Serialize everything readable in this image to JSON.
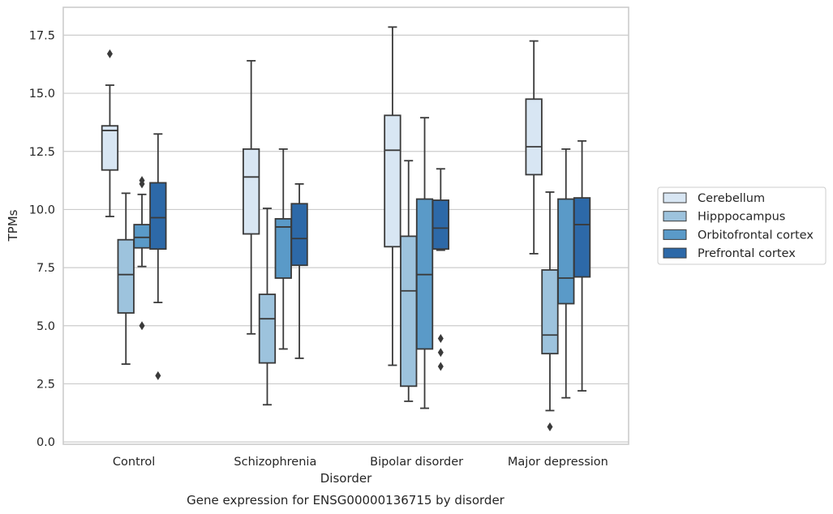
{
  "chart_data": {
    "type": "boxplot",
    "caption": "Gene expression for ENSG00000136715 by disorder",
    "xlabel": "Disorder",
    "ylabel": "TPMs",
    "ylim": [
      -0.1,
      18.7
    ],
    "yticks": [
      0.0,
      2.5,
      5.0,
      7.5,
      10.0,
      12.5,
      15.0,
      17.5
    ],
    "ytick_labels": [
      "0.0",
      "2.5",
      "5.0",
      "7.5",
      "10.0",
      "12.5",
      "15.0",
      "17.5"
    ],
    "categories": [
      "Control",
      "Schizophrenia",
      "Bipolar disorder",
      "Major depression"
    ],
    "grid": "horizontal",
    "legend_position": "right",
    "series": [
      {
        "name": "Cerebellum",
        "color": "#d8e6f3",
        "boxes": [
          {
            "whisker_low": 9.7,
            "q1": 11.7,
            "median": 13.4,
            "q3": 13.6,
            "whisker_high": 15.35,
            "outliers": [
              16.7
            ]
          },
          {
            "whisker_low": 4.65,
            "q1": 8.95,
            "median": 11.4,
            "q3": 12.6,
            "whisker_high": 16.4,
            "outliers": []
          },
          {
            "whisker_low": 3.3,
            "q1": 8.4,
            "median": 12.55,
            "q3": 14.05,
            "whisker_high": 17.85,
            "outliers": []
          },
          {
            "whisker_low": 8.1,
            "q1": 11.5,
            "median": 12.7,
            "q3": 14.75,
            "whisker_high": 17.25,
            "outliers": []
          }
        ]
      },
      {
        "name": "Hipppocampus",
        "color": "#9dc3dd",
        "boxes": [
          {
            "whisker_low": 3.35,
            "q1": 5.55,
            "median": 7.2,
            "q3": 8.7,
            "whisker_high": 10.7,
            "outliers": []
          },
          {
            "whisker_low": 1.6,
            "q1": 3.4,
            "median": 5.3,
            "q3": 6.35,
            "whisker_high": 10.05,
            "outliers": []
          },
          {
            "whisker_low": 1.75,
            "q1": 2.4,
            "median": 6.5,
            "q3": 8.85,
            "whisker_high": 12.1,
            "outliers": []
          },
          {
            "whisker_low": 1.35,
            "q1": 3.8,
            "median": 4.6,
            "q3": 7.4,
            "whisker_high": 10.75,
            "outliers": [
              0.65
            ]
          }
        ]
      },
      {
        "name": "Orbitofrontal cortex",
        "color": "#5a9ac8",
        "boxes": [
          {
            "whisker_low": 7.55,
            "q1": 8.35,
            "median": 8.8,
            "q3": 9.35,
            "whisker_high": 10.65,
            "outliers": [
              11.25,
              11.1,
              5.0
            ]
          },
          {
            "whisker_low": 4.0,
            "q1": 7.05,
            "median": 9.25,
            "q3": 9.6,
            "whisker_high": 12.6,
            "outliers": []
          },
          {
            "whisker_low": 1.45,
            "q1": 4.0,
            "median": 7.2,
            "q3": 10.45,
            "whisker_high": 13.95,
            "outliers": []
          },
          {
            "whisker_low": 1.9,
            "q1": 5.95,
            "median": 7.05,
            "q3": 10.45,
            "whisker_high": 12.6,
            "outliers": []
          }
        ]
      },
      {
        "name": "Prefrontal cortex",
        "color": "#2d69a8",
        "boxes": [
          {
            "whisker_low": 6.0,
            "q1": 8.3,
            "median": 9.65,
            "q3": 11.15,
            "whisker_high": 13.25,
            "outliers": [
              2.85
            ]
          },
          {
            "whisker_low": 3.6,
            "q1": 7.6,
            "median": 8.75,
            "q3": 10.25,
            "whisker_high": 11.1,
            "outliers": []
          },
          {
            "whisker_low": 8.25,
            "q1": 8.3,
            "median": 9.2,
            "q3": 10.4,
            "whisker_high": 11.75,
            "outliers": [
              4.45,
              3.85,
              3.25
            ]
          },
          {
            "whisker_low": 2.2,
            "q1": 7.1,
            "median": 9.35,
            "q3": 10.5,
            "whisker_high": 12.95,
            "outliers": []
          }
        ]
      }
    ]
  }
}
